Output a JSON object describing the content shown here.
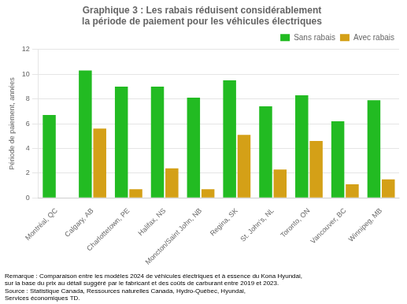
{
  "chart_data": {
    "type": "bar",
    "title": [
      "Graphique 3 : Les rabais réduisent considérablement",
      "la période de paiement pour les véhicules électriques"
    ],
    "ylabel": "Période de paiement, années",
    "categories": [
      "Montréal, QC",
      "Calgary, AB",
      "Charlottetown, PE",
      "Halifax, NS",
      "Moncton/Saint John, NB",
      "Regina, SK",
      "St. John's, NL",
      "Toronto, ON",
      "Vancouver, BC",
      "Winnipeg, MB"
    ],
    "series": [
      {
        "name": "Sans rabais",
        "color": "#22bb22",
        "values": [
          6.7,
          10.3,
          9.0,
          9.0,
          8.1,
          9.5,
          7.4,
          8.3,
          6.2,
          7.9
        ]
      },
      {
        "name": "Avec rabais",
        "color": "#d4a017",
        "values": [
          0,
          5.6,
          0.7,
          2.4,
          0.7,
          5.1,
          2.3,
          4.6,
          1.1,
          1.5
        ]
      }
    ],
    "ylim": [
      0,
      12
    ],
    "yticks": [
      0,
      2,
      4,
      6,
      8,
      10,
      12
    ],
    "grid": true,
    "legend": "upper right",
    "annotations": [
      "Remarque : Comparaison entre les modèles 2024 de véhicules électriques et à essence du Kona Hyundai,",
      "sur la base du prix au détail suggéré par le fabricant et des coûts de carburant entre 2019 et 2023.",
      "Source : Statistique Canada, Ressources naturelles Canada, Hydro-Québec, Hyundai,",
      "Services économiques TD."
    ]
  }
}
